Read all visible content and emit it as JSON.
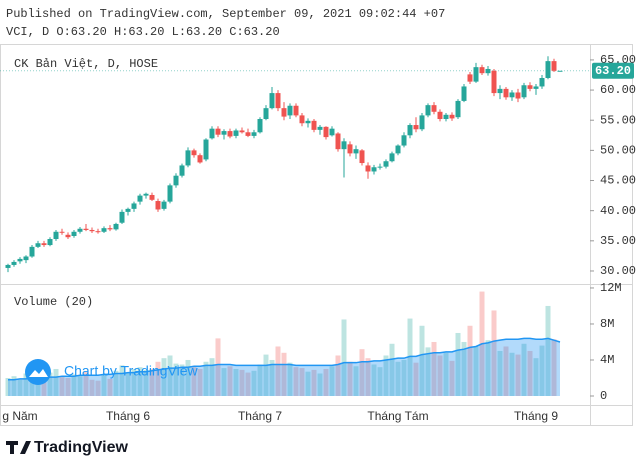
{
  "chart_data": {
    "type": "candlestick",
    "published": "Published on TradingView.com, September 09, 2021 09:02:44 +07",
    "symbol_line": "VCI, D O:63.20 H:63.20 L:63.20 C:63.20",
    "legend": "CK Bản Việt, D, HOSE",
    "watermark": "Chart by TradingView",
    "logo": "TradingView",
    "up_color": "#26a69a",
    "down_color": "#ef5350",
    "grid": false,
    "categories": [
      null,
      null,
      "g Năm",
      null,
      null,
      null,
      null,
      null,
      null,
      null,
      null,
      null,
      null,
      null,
      null,
      null,
      null,
      null,
      null,
      null,
      "Tháng 6",
      null,
      null,
      null,
      null,
      null,
      null,
      null,
      null,
      null,
      null,
      null,
      null,
      null,
      null,
      null,
      null,
      null,
      null,
      null,
      null,
      null,
      "Tháng 7",
      null,
      null,
      null,
      null,
      null,
      null,
      null,
      null,
      null,
      null,
      null,
      null,
      null,
      null,
      null,
      null,
      null,
      null,
      null,
      null,
      null,
      null,
      "Tháng Tám",
      null,
      null,
      null,
      null,
      null,
      null,
      null,
      null,
      null,
      null,
      null,
      null,
      null,
      null,
      null,
      null,
      null,
      null,
      null,
      null,
      null,
      null,
      "Tháng 9",
      null,
      null,
      null,
      null
    ],
    "open": [
      30.5,
      31.0,
      31.6,
      31.8,
      32.4,
      34.0,
      34.6,
      34.3,
      35.3,
      36.5,
      36.0,
      35.8,
      36.5,
      37.0,
      36.8,
      36.6,
      36.5,
      37.1,
      36.9,
      38.0,
      39.8,
      40.3,
      41.5,
      42.5,
      42.6,
      41.6,
      40.3,
      41.5,
      44.2,
      45.8,
      47.5,
      50.0,
      49.2,
      48.5,
      52.0,
      53.6,
      52.6,
      53.2,
      52.4,
      53.3,
      53.0,
      52.4,
      53.0,
      55.2,
      57.0,
      59.5,
      57.0,
      55.8,
      57.4,
      55.8,
      54.5,
      54.9,
      53.4,
      53.9,
      52.5,
      52.8,
      50.2,
      51.0,
      49.5,
      50.0,
      47.5,
      46.5,
      47.2,
      47.3,
      48.2,
      49.5,
      50.8,
      52.5,
      54.2,
      53.5,
      55.8,
      57.5,
      56.4,
      55.2,
      55.9,
      55.5,
      58.2,
      62.6,
      61.4,
      63.8,
      62.8,
      63.2,
      59.5,
      60.2,
      58.8,
      59.6,
      58.8,
      60.8,
      60.2,
      60.6,
      62.0,
      64.8,
      63.2
    ],
    "high": [
      31.2,
      31.8,
      32.3,
      32.6,
      34.3,
      35.0,
      35.0,
      35.6,
      36.8,
      37.0,
      36.4,
      36.8,
      37.3,
      37.8,
      37.2,
      37.0,
      37.4,
      37.6,
      38.0,
      40.2,
      40.5,
      41.5,
      42.8,
      43.0,
      43.0,
      42.0,
      41.8,
      44.5,
      46.2,
      47.8,
      50.5,
      50.3,
      49.5,
      52.0,
      54.0,
      54.0,
      53.5,
      53.6,
      53.6,
      53.8,
      53.6,
      53.4,
      55.5,
      57.5,
      60.5,
      60.0,
      58.0,
      57.8,
      57.8,
      56.2,
      55.3,
      55.2,
      54.2,
      54.0,
      54.0,
      53.0,
      52.0,
      51.5,
      50.8,
      50.2,
      48.0,
      47.6,
      47.8,
      48.5,
      49.8,
      51.0,
      53.0,
      54.5,
      55.5,
      56.2,
      57.8,
      58.0,
      56.8,
      56.2,
      56.3,
      58.5,
      61.0,
      63.0,
      64.5,
      64.2,
      64.0,
      63.5,
      60.8,
      60.5,
      60.0,
      60.2,
      61.2,
      61.3,
      61.0,
      62.5,
      65.6,
      65.2,
      63.2
    ],
    "low": [
      29.8,
      30.7,
      31.2,
      31.3,
      32.2,
      33.8,
      34.0,
      34.1,
      35.0,
      36.0,
      35.3,
      35.5,
      36.2,
      36.6,
      36.3,
      36.2,
      36.3,
      36.6,
      36.7,
      37.8,
      39.2,
      39.8,
      41.0,
      42.0,
      41.6,
      39.8,
      40.0,
      41.2,
      43.8,
      45.5,
      47.2,
      48.8,
      47.8,
      48.2,
      51.8,
      52.2,
      51.8,
      52.0,
      52.0,
      52.8,
      52.2,
      52.0,
      52.8,
      55.0,
      56.8,
      56.5,
      55.0,
      55.2,
      55.5,
      54.0,
      53.8,
      53.0,
      52.6,
      51.8,
      52.3,
      49.8,
      45.5,
      49.0,
      48.6,
      47.5,
      45.3,
      46.0,
      46.8,
      47.0,
      48.0,
      49.2,
      50.5,
      52.0,
      53.0,
      53.2,
      55.5,
      56.0,
      54.8,
      54.8,
      54.9,
      55.2,
      58.0,
      61.0,
      61.2,
      62.5,
      62.4,
      59.0,
      58.5,
      58.4,
      58.2,
      58.0,
      58.5,
      59.8,
      59.2,
      60.2,
      61.8,
      63.0,
      63.2
    ],
    "close": [
      31.0,
      31.5,
      32.0,
      32.4,
      34.0,
      34.6,
      34.3,
      35.3,
      36.5,
      36.4,
      35.6,
      36.5,
      37.0,
      36.8,
      36.6,
      36.5,
      37.1,
      36.9,
      37.8,
      39.8,
      40.3,
      41.2,
      42.5,
      42.8,
      41.8,
      40.2,
      41.5,
      44.2,
      45.8,
      47.5,
      50.0,
      49.2,
      48.0,
      51.8,
      53.6,
      52.6,
      53.2,
      52.3,
      53.3,
      53.0,
      52.4,
      53.0,
      55.2,
      57.0,
      59.5,
      57.0,
      55.6,
      57.4,
      55.8,
      54.5,
      54.9,
      53.4,
      53.9,
      52.2,
      53.6,
      50.2,
      51.5,
      49.5,
      50.2,
      47.9,
      46.5,
      47.2,
      47.3,
      48.2,
      49.5,
      50.8,
      52.5,
      54.2,
      53.5,
      55.8,
      57.5,
      56.4,
      55.2,
      55.9,
      55.3,
      58.2,
      60.6,
      61.4,
      63.8,
      62.8,
      63.5,
      59.5,
      60.2,
      58.8,
      59.6,
      58.6,
      60.8,
      60.2,
      60.6,
      62.0,
      64.8,
      63.2,
      63.2
    ],
    "ylim": [
      27.84,
      67.64
    ],
    "yticks": [
      {
        "value": 30,
        "label": "30.00"
      },
      {
        "value": 35,
        "label": "35.00"
      },
      {
        "value": 40,
        "label": "40.00"
      },
      {
        "value": 45,
        "label": "45.00"
      },
      {
        "value": 50,
        "label": "50.00"
      },
      {
        "value": 55,
        "label": "55.00"
      },
      {
        "value": 60,
        "label": "60.00"
      },
      {
        "value": 65,
        "label": "65.00"
      }
    ],
    "last_price": {
      "value": 63.2,
      "label": "63.20"
    },
    "volume": {
      "label": "Volume (20)",
      "ma_color": "#2196f3",
      "values": [
        2.0,
        2.2,
        1.8,
        2.5,
        2.8,
        2.0,
        1.9,
        2.6,
        3.0,
        2.1,
        2.0,
        2.4,
        2.2,
        2.7,
        1.8,
        1.7,
        2.3,
        1.9,
        2.8,
        3.4,
        2.5,
        3.0,
        3.2,
        2.9,
        3.0,
        3.8,
        4.2,
        4.5,
        3.6,
        3.5,
        4.0,
        3.2,
        3.0,
        3.8,
        4.2,
        6.4,
        3.1,
        3.3,
        3.0,
        2.9,
        2.6,
        2.8,
        3.5,
        4.6,
        4.0,
        5.5,
        4.8,
        3.7,
        3.2,
        3.1,
        2.7,
        2.9,
        2.5,
        3.0,
        3.3,
        4.5,
        8.5,
        3.8,
        3.3,
        5.2,
        4.2,
        3.5,
        3.2,
        4.5,
        5.8,
        3.8,
        4.0,
        8.6,
        3.7,
        7.8,
        5.4,
        6.0,
        4.5,
        4.8,
        3.9,
        7.0,
        6.0,
        7.8,
        5.5,
        11.6,
        6.2,
        9.5,
        5.0,
        5.5,
        4.8,
        4.6,
        5.8,
        5.0,
        4.2,
        5.6,
        10.0,
        6.3,
        0
      ],
      "ma": [
        1.8,
        1.8,
        1.9,
        1.9,
        2.0,
        2.0,
        2.0,
        2.1,
        2.1,
        2.2,
        2.2,
        2.2,
        2.3,
        2.3,
        2.3,
        2.3,
        2.4,
        2.4,
        2.5,
        2.5,
        2.6,
        2.6,
        2.7,
        2.7,
        2.8,
        2.9,
        3.0,
        3.1,
        3.1,
        3.2,
        3.2,
        3.3,
        3.3,
        3.4,
        3.4,
        3.5,
        3.5,
        3.5,
        3.4,
        3.4,
        3.4,
        3.4,
        3.4,
        3.4,
        3.5,
        3.5,
        3.5,
        3.5,
        3.4,
        3.4,
        3.4,
        3.4,
        3.4,
        3.4,
        3.4,
        3.5,
        3.7,
        3.7,
        3.7,
        3.8,
        3.8,
        3.9,
        3.9,
        4.0,
        4.1,
        4.2,
        4.2,
        4.4,
        4.4,
        4.6,
        4.7,
        4.8,
        4.8,
        4.9,
        4.9,
        5.1,
        5.2,
        5.4,
        5.5,
        5.8,
        5.9,
        6.1,
        6.2,
        6.3,
        6.3,
        6.3,
        6.4,
        6.4,
        6.3,
        6.3,
        6.4,
        6.2,
        6.0
      ],
      "ylim": [
        -1.0,
        12.44
      ],
      "yticks": [
        0,
        {
          "value": 4,
          "label": "4M"
        },
        {
          "value": 8,
          "label": "8M"
        },
        {
          "value": 12,
          "label": "12M"
        }
      ]
    }
  }
}
